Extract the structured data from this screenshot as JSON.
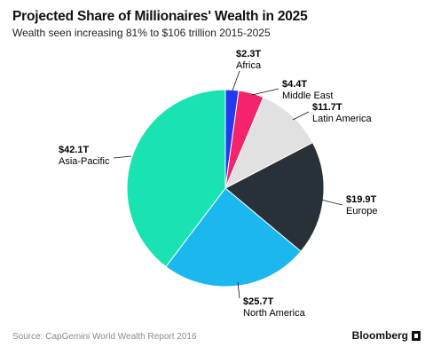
{
  "title": "Projected Share of Millionaires' Wealth in 2025",
  "subtitle": "Wealth seen increasing 81% to $106 trillion 2015-2025",
  "source": "Source: CapGemini World Wealth Report 2016",
  "brand": "Bloomberg",
  "chart_data": {
    "type": "pie",
    "title": "Projected Share of Millionaires' Wealth in 2025",
    "subtitle": "Wealth seen increasing 81% to $106 trillion 2015-2025",
    "unit": "trillion USD",
    "slices": [
      {
        "name": "Africa",
        "value": 2.3,
        "label": "$2.3T",
        "color": "#1f3af0"
      },
      {
        "name": "Middle East",
        "value": 4.4,
        "label": "$4.4T",
        "color": "#f5236b"
      },
      {
        "name": "Latin America",
        "value": 11.7,
        "label": "$11.7T",
        "color": "#e1e1e1"
      },
      {
        "name": "Europe",
        "value": 19.9,
        "label": "$19.9T",
        "color": "#283038"
      },
      {
        "name": "North America",
        "value": 25.7,
        "label": "$25.7T",
        "color": "#1ab8ee"
      },
      {
        "name": "Asia-Pacific",
        "value": 42.1,
        "label": "$42.1T",
        "color": "#18e3b1"
      }
    ]
  }
}
